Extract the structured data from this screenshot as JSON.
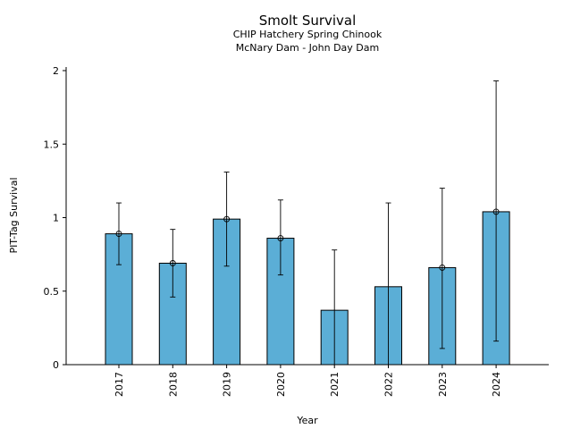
{
  "chart_data": {
    "type": "bar",
    "title": "Smolt Survival",
    "subtitle_line1": "CHIP Hatchery Spring Chinook",
    "subtitle_line2": "McNary Dam - John Day Dam",
    "xlabel": "Year",
    "ylabel": "PIT-Tag Survival",
    "ylim": [
      0,
      2
    ],
    "yticks": [
      0,
      0.5,
      1,
      1.5,
      2
    ],
    "ytick_labels": [
      "0",
      "0.5",
      "1",
      "1.5",
      "2"
    ],
    "categories": [
      "2017",
      "2018",
      "2019",
      "2020",
      "2021",
      "2022",
      "2023",
      "2024"
    ],
    "values": [
      0.89,
      0.69,
      0.99,
      0.86,
      0.37,
      0.53,
      0.66,
      1.04
    ],
    "error_low": [
      0.68,
      0.46,
      0.67,
      0.61,
      0.0,
      0.0,
      0.11,
      0.16
    ],
    "error_high": [
      1.1,
      0.92,
      1.31,
      1.12,
      0.78,
      1.1,
      1.2,
      1.93
    ],
    "point_markers": [
      true,
      true,
      true,
      true,
      false,
      false,
      true,
      true
    ],
    "bar_color": "#5baed6",
    "grid": false,
    "legend": "none"
  }
}
